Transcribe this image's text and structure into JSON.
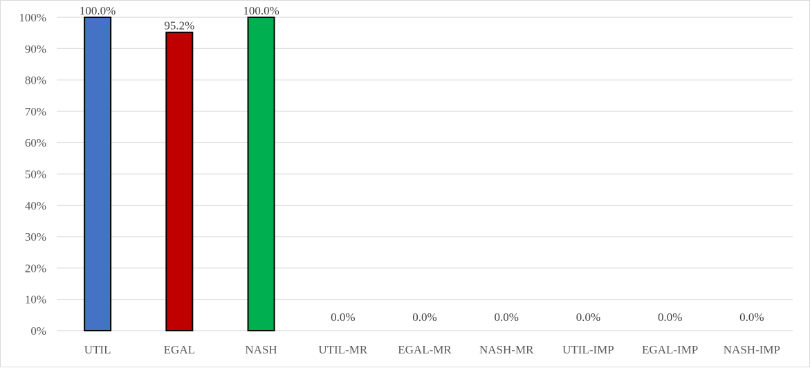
{
  "chart_data": {
    "type": "bar",
    "categories": [
      "UTIL",
      "EGAL",
      "NASH",
      "UTIL-MR",
      "EGAL-MR",
      "NASH-MR",
      "UTIL-IMP",
      "EGAL-IMP",
      "NASH-IMP"
    ],
    "values": [
      100.0,
      95.2,
      100.0,
      0.0,
      0.0,
      0.0,
      0.0,
      0.0,
      0.0
    ],
    "data_labels": [
      "100.0%",
      "95.2%",
      "100.0%",
      "0.0%",
      "0.0%",
      "0.0%",
      "0.0%",
      "0.0%",
      "0.0%"
    ],
    "colors": [
      "#4472C4",
      "#C00000",
      "#00B050",
      "#4472C4",
      "#4472C4",
      "#4472C4",
      "#4472C4",
      "#4472C4",
      "#4472C4"
    ],
    "bar_outline": "#000000",
    "ylim": [
      0,
      100
    ],
    "yticks": [
      "0%",
      "10%",
      "20%",
      "30%",
      "40%",
      "50%",
      "60%",
      "70%",
      "80%",
      "90%",
      "100%"
    ],
    "grid": true,
    "legend": "none",
    "title": "",
    "xlabel": "",
    "ylabel": ""
  }
}
